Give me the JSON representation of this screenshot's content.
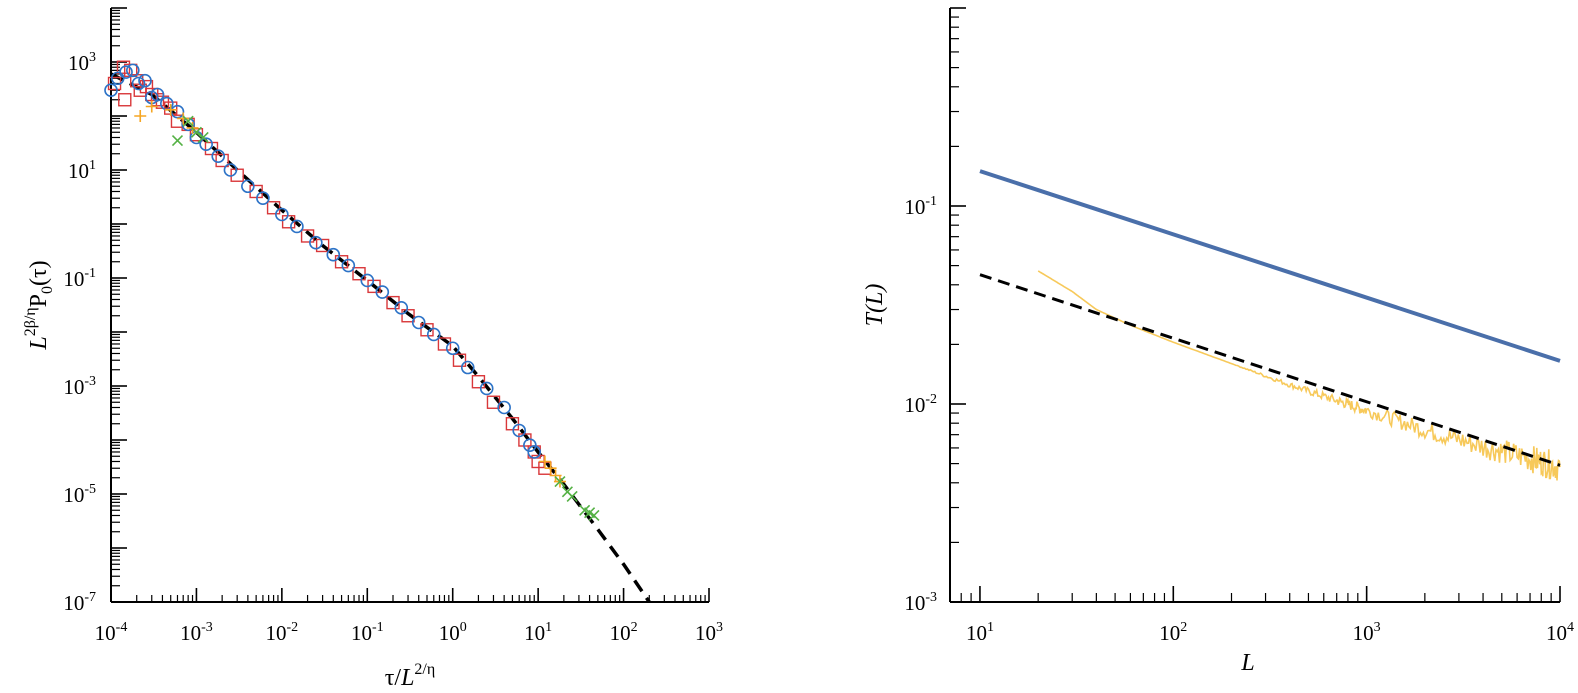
{
  "chart_data": [
    {
      "type": "scatter",
      "panel": "left",
      "xscale": "log",
      "yscale": "log",
      "xlim": [
        0.0001,
        1000
      ],
      "ylim": [
        1e-07,
        10000
      ],
      "x_tick_exponents": [
        "-4",
        "-3",
        "-2",
        "-1",
        "0",
        "1",
        "2",
        "3"
      ],
      "y_tick_exponents": [
        "3",
        "1",
        "-1",
        "-3",
        "-5",
        "-7"
      ],
      "ylabel_parts": {
        "base": "L",
        "sup": "2β/η",
        "rest": "P",
        "sub": "0",
        "tail": "(τ)"
      },
      "xlabel_parts": {
        "base": "τ/",
        "italic": "L",
        "sup": "2/η"
      },
      "grid": false,
      "legend": "none",
      "series": [
        {
          "marker": "square",
          "color": "#d9373a",
          "points": [
            [
              0.00011,
              400
            ],
            [
              0.00014,
              800
            ],
            [
              0.000145,
              200
            ],
            [
              0.00017,
              700
            ],
            [
              0.0002,
              450
            ],
            [
              0.00022,
              300
            ],
            [
              0.00026,
              350
            ],
            [
              0.0003,
              250
            ],
            [
              0.00035,
              200
            ],
            [
              0.0004,
              180
            ],
            [
              0.0005,
              140
            ],
            [
              0.0006,
              80
            ],
            [
              0.0008,
              70
            ],
            [
              0.001,
              45
            ],
            [
              0.0015,
              25
            ],
            [
              0.002,
              15
            ],
            [
              0.003,
              8
            ],
            [
              0.005,
              4
            ],
            [
              0.008,
              2
            ],
            [
              0.012,
              1.1
            ],
            [
              0.02,
              0.6
            ],
            [
              0.03,
              0.4
            ],
            [
              0.05,
              0.2
            ],
            [
              0.08,
              0.12
            ],
            [
              0.12,
              0.07
            ],
            [
              0.2,
              0.035
            ],
            [
              0.3,
              0.02
            ],
            [
              0.5,
              0.011
            ],
            [
              0.8,
              0.006
            ],
            [
              1.2,
              0.003
            ],
            [
              2,
              0.0012
            ],
            [
              3,
              0.0005
            ],
            [
              5,
              0.0002
            ],
            [
              7,
              0.0001
            ],
            [
              9,
              6e-05
            ],
            [
              10,
              4e-05
            ],
            [
              12,
              3e-05
            ]
          ]
        },
        {
          "marker": "circle",
          "color": "#2d73c7",
          "points": [
            [
              0.0001,
              300
            ],
            [
              0.00012,
              500
            ],
            [
              0.00015,
              650
            ],
            [
              0.00018,
              700
            ],
            [
              0.00021,
              400
            ],
            [
              0.00025,
              450
            ],
            [
              0.0003,
              220
            ],
            [
              0.00035,
              250
            ],
            [
              0.00045,
              170
            ],
            [
              0.0006,
              120
            ],
            [
              0.0008,
              70
            ],
            [
              0.001,
              40
            ],
            [
              0.0013,
              30
            ],
            [
              0.0018,
              18
            ],
            [
              0.0025,
              10
            ],
            [
              0.004,
              5
            ],
            [
              0.006,
              3
            ],
            [
              0.01,
              1.5
            ],
            [
              0.015,
              0.9
            ],
            [
              0.025,
              0.45
            ],
            [
              0.04,
              0.27
            ],
            [
              0.06,
              0.17
            ],
            [
              0.1,
              0.09
            ],
            [
              0.15,
              0.055
            ],
            [
              0.25,
              0.028
            ],
            [
              0.4,
              0.015
            ],
            [
              0.6,
              0.009
            ],
            [
              1,
              0.005
            ],
            [
              1.5,
              0.0022
            ],
            [
              2.5,
              0.0009
            ],
            [
              4,
              0.0004
            ],
            [
              6,
              0.00015
            ],
            [
              8,
              8e-05
            ],
            [
              9,
              6e-05
            ]
          ]
        },
        {
          "marker": "plus",
          "color": "#f5a623",
          "points": [
            [
              0.00022,
              100
            ],
            [
              0.0003,
              150
            ],
            [
              0.0005,
              130
            ],
            [
              0.0007,
              90
            ],
            [
              0.0009,
              60
            ],
            [
              12,
              4e-05
            ],
            [
              14,
              3e-05
            ],
            [
              16,
              2.2e-05
            ],
            [
              18,
              1.7e-05
            ]
          ]
        },
        {
          "marker": "cross",
          "color": "#54b144",
          "points": [
            [
              0.0006,
              35
            ],
            [
              0.0008,
              80
            ],
            [
              0.001,
              50
            ],
            [
              0.0012,
              40
            ],
            [
              18,
              1.7e-05
            ],
            [
              22,
              1.1e-05
            ],
            [
              25,
              9e-06
            ],
            [
              35,
              5e-06
            ],
            [
              40,
              4.5e-06
            ],
            [
              45,
              4e-06
            ]
          ]
        }
      ],
      "fit_line": {
        "style": "dashed",
        "color": "#000000",
        "points": [
          [
            0.0001,
            600
          ],
          [
            0.0003,
            250
          ],
          [
            0.001,
            50
          ],
          [
            0.003,
            10
          ],
          [
            0.01,
            1.8
          ],
          [
            0.03,
            0.4
          ],
          [
            0.1,
            0.09
          ],
          [
            0.3,
            0.022
          ],
          [
            1,
            0.0055
          ],
          [
            2,
            0.0015
          ],
          [
            5,
            0.00025
          ],
          [
            10,
            6e-05
          ],
          [
            20,
            1.5e-05
          ],
          [
            50,
            2.2e-06
          ],
          [
            100,
            5e-07
          ],
          [
            200,
            1e-07
          ]
        ]
      }
    },
    {
      "type": "line",
      "panel": "right",
      "xscale": "log",
      "yscale": "log",
      "xlim": [
        7,
        10000
      ],
      "ylim": [
        0.001,
        1
      ],
      "x_tick_exponents": [
        "1",
        "2",
        "3",
        "4"
      ],
      "y_tick_exponents": [
        "-1",
        "-2",
        "-3"
      ],
      "xlabel": "L",
      "ylabel": "T(L)",
      "grid": false,
      "legend": "none",
      "series": [
        {
          "style": "solid",
          "color": "#4a6faa",
          "points": [
            [
              10,
              0.15
            ],
            [
              10000,
              0.0165
            ]
          ]
        },
        {
          "style": "noisy",
          "color": "#f7c95a",
          "points": [
            [
              20,
              0.047
            ],
            [
              30,
              0.037
            ],
            [
              40,
              0.03
            ],
            [
              60,
              0.025
            ],
            [
              100,
              0.0205
            ],
            [
              200,
              0.016
            ],
            [
              400,
              0.0125
            ],
            [
              700,
              0.0104
            ],
            [
              1000,
              0.0093
            ],
            [
              2000,
              0.0074
            ],
            [
              4000,
              0.0061
            ],
            [
              7000,
              0.0053
            ],
            [
              10000,
              0.0048
            ]
          ]
        },
        {
          "style": "dashed",
          "color": "#000000",
          "points": [
            [
              10,
              0.045
            ],
            [
              10000,
              0.0049
            ]
          ]
        }
      ]
    }
  ]
}
